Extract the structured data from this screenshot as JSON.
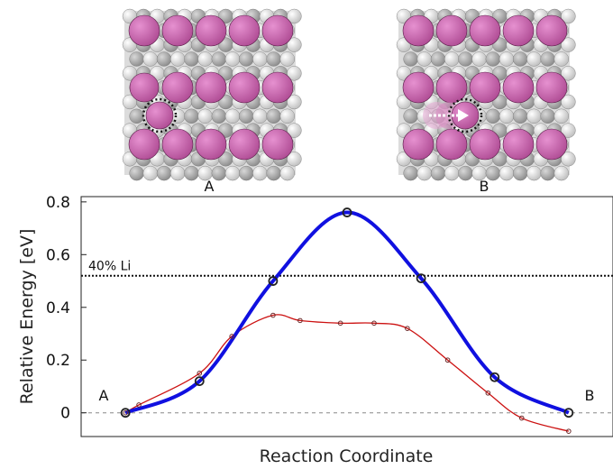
{
  "panels": {
    "a": {
      "label": "A"
    },
    "b": {
      "label": "B"
    }
  },
  "colors": {
    "atom_pink": "#b04d95",
    "atom_grey": "#8a8a8a",
    "atom_white": "#f2f2f2",
    "series_blue": "#1010e0",
    "series_red": "#cc1111",
    "marker": "#222222"
  },
  "icons": {
    "vacancy": "dotted-circle",
    "hop": "arrow-right"
  },
  "chart_data": {
    "type": "line",
    "xlabel": "Reaction Coordinate",
    "ylabel": "Relative Energy [eV]",
    "xlim": [
      -0.1,
      1.1
    ],
    "ylim": [
      -0.09,
      0.82
    ],
    "yticks": [
      0,
      0.2,
      0.4,
      0.6,
      0.8
    ],
    "ytick_labels": [
      "0",
      "0.2",
      "0.4",
      "0.6",
      "0.8"
    ],
    "endpoint_labels": [
      "A",
      "B"
    ],
    "grid": false,
    "reference_lines": [
      {
        "label": "40% Li",
        "y": 0.52,
        "style": "dotted"
      },
      {
        "label": "",
        "y": 0,
        "style": "dashed"
      }
    ],
    "series": [
      {
        "color": "#1010e0",
        "points": [
          [
            0.0,
            0.0
          ],
          [
            0.167,
            0.12
          ],
          [
            0.333,
            0.5
          ],
          [
            0.5,
            0.76
          ],
          [
            0.667,
            0.51
          ],
          [
            0.833,
            0.135
          ],
          [
            1.0,
            0.0
          ]
        ]
      },
      {
        "color": "#cc1111",
        "points": [
          [
            0.0,
            0.0
          ],
          [
            0.0303,
            0.03
          ],
          [
            0.167,
            0.15
          ],
          [
            0.24,
            0.29
          ],
          [
            0.333,
            0.37
          ],
          [
            0.394,
            0.35
          ],
          [
            0.485,
            0.34
          ],
          [
            0.561,
            0.34
          ],
          [
            0.636,
            0.32
          ],
          [
            0.727,
            0.2
          ],
          [
            0.818,
            0.075
          ],
          [
            0.894,
            -0.02
          ],
          [
            1.0,
            -0.07
          ]
        ]
      }
    ]
  }
}
